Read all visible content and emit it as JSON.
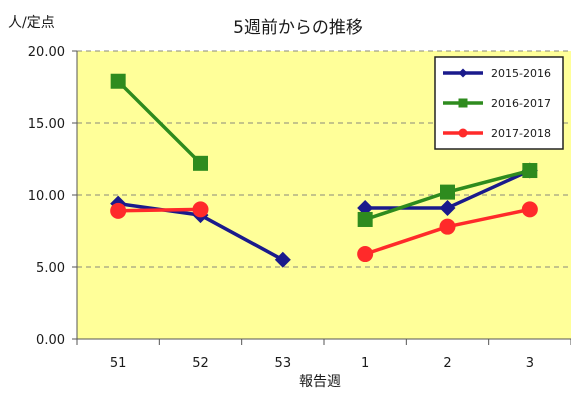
{
  "chart_data": {
    "type": "line",
    "title": "5週前からの推移",
    "ylabel": "人/定点",
    "xlabel": "報告週",
    "categories": [
      "51",
      "52",
      "53",
      "1",
      "2",
      "3"
    ],
    "ylim": [
      0,
      20
    ],
    "yticks": [
      0,
      5,
      10,
      15,
      20
    ],
    "ytick_labels": [
      "0.00",
      "5.00",
      "10.00",
      "15.00",
      "20.00"
    ],
    "grid": "dashed horizontal",
    "legend_position": "top-right",
    "plot_background": "#ffff99",
    "series": [
      {
        "name": "2015-2016",
        "color": "#1a1a8c",
        "marker": "diamond",
        "segments": [
          {
            "start": 0,
            "values": [
              9.4,
              8.6,
              5.5
            ]
          },
          {
            "start": 3,
            "values": [
              9.1,
              9.1,
              11.7
            ]
          }
        ]
      },
      {
        "name": "2016-2017",
        "color": "#2e8b1e",
        "marker": "square",
        "segments": [
          {
            "start": 0,
            "values": [
              17.9,
              12.2
            ]
          },
          {
            "start": 3,
            "values": [
              8.3,
              10.2,
              11.7
            ]
          }
        ]
      },
      {
        "name": "2017-2018",
        "color": "#ff2a2a",
        "marker": "circle",
        "segments": [
          {
            "start": 0,
            "values": [
              8.9,
              9.0
            ]
          },
          {
            "start": 3,
            "values": [
              5.9,
              7.8,
              9.0
            ]
          }
        ]
      }
    ]
  }
}
